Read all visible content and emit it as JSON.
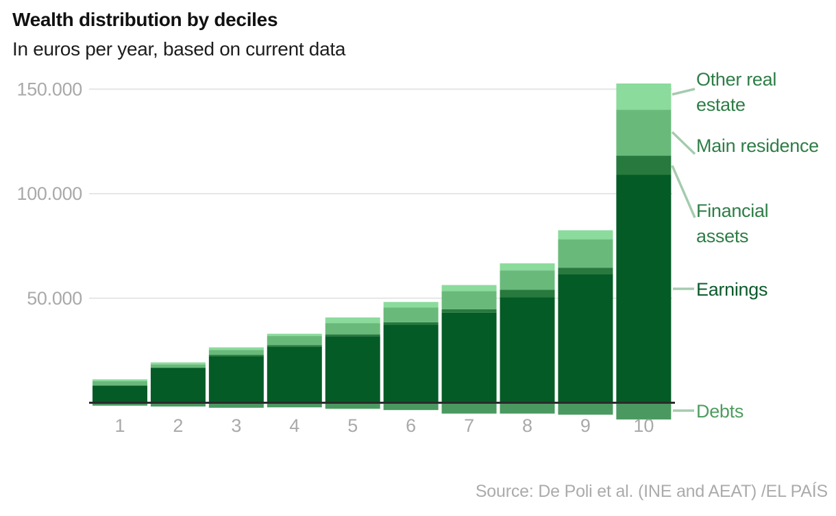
{
  "header": {
    "title": "Wealth distribution by deciles",
    "subtitle": "In euros per year, based on current data"
  },
  "source": "Source: De Poli et al. (INE and AEAT) /EL PAÍS",
  "colors": {
    "earnings": "#055B26",
    "financial_assets": "#27793E",
    "main_residence": "#69BA7A",
    "other_real_estate": "#8BDB9C",
    "debts": "#4A9960",
    "leader_line": "#A5CBAD",
    "legend_text": "#2E7D46",
    "earnings_label_text": "#0B5B2B",
    "debts_label_text": "#4D9D5E",
    "axis_text": "#A9A9A9",
    "gridline": "#E6E6E6",
    "zero_line": "#2B2B2B"
  },
  "legend": {
    "items": [
      {
        "label": "Other real estate",
        "series_key": "other_real_estate"
      },
      {
        "label": "Main residence",
        "series_key": "main_residence"
      },
      {
        "label": "Financial assets",
        "series_key": "financial_assets"
      },
      {
        "label": "Earnings",
        "series_key": "earnings"
      },
      {
        "label": "Debts",
        "series_key": "debts"
      }
    ]
  },
  "chart_data": {
    "type": "bar",
    "stacked": true,
    "title": "Wealth distribution by deciles",
    "subtitle": "In euros per year, based on current data",
    "xlabel": "",
    "ylabel": "",
    "categories": [
      "1",
      "2",
      "3",
      "4",
      "5",
      "6",
      "7",
      "8",
      "9",
      "10"
    ],
    "series": [
      {
        "name": "Earnings",
        "key": "earnings",
        "values": [
          8200,
          16700,
          22100,
          26700,
          31800,
          37300,
          43100,
          50400,
          61600,
          109000
        ]
      },
      {
        "name": "Financial assets",
        "key": "financial_assets",
        "values": [
          0,
          0,
          800,
          800,
          900,
          1200,
          1600,
          3600,
          3000,
          9200
        ]
      },
      {
        "name": "Main residence",
        "key": "main_residence",
        "values": [
          2100,
          1600,
          2400,
          4400,
          5400,
          7000,
          8700,
          9300,
          13600,
          22000
        ]
      },
      {
        "name": "Other real estate",
        "key": "other_real_estate",
        "values": [
          900,
          1000,
          1200,
          1100,
          2700,
          2700,
          2900,
          3400,
          4300,
          12500
        ]
      },
      {
        "name": "Debts",
        "key": "debts",
        "values": [
          -1400,
          -1800,
          -2400,
          -2200,
          -2900,
          -3500,
          -5200,
          -5200,
          -5700,
          -8000
        ]
      }
    ],
    "yticks": [
      50000,
      100000,
      150000
    ],
    "ytick_labels": [
      "50.000",
      "100.000",
      "150.000"
    ],
    "ylim": [
      -8500,
      156000
    ],
    "grid": true,
    "legend_position": "right"
  }
}
